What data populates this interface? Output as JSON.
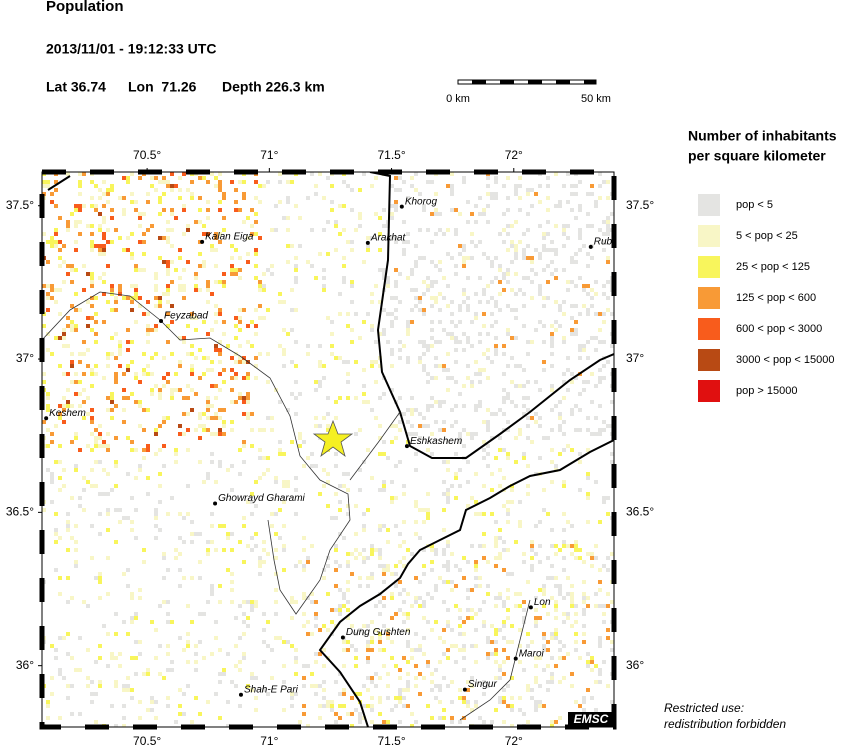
{
  "header": {
    "title": "Population",
    "datetime": "2013/11/01 - 19:12:33 UTC",
    "lat": "Lat 36.74",
    "lon": "Lon  71.26",
    "depth": "Depth 226.3 km"
  },
  "scale_bar": {
    "start": "0 km",
    "end": "50 km"
  },
  "map": {
    "xlim": [
      70.07,
      72.41
    ],
    "ylim": [
      35.8,
      37.61
    ],
    "xticks": [
      {
        "value": 70.5,
        "label": "70.5°"
      },
      {
        "value": 71,
        "label": "71°"
      },
      {
        "value": 71.5,
        "label": "71.5°"
      },
      {
        "value": 72,
        "label": "72°"
      }
    ],
    "yticks": [
      {
        "value": 37.5,
        "label": "37.5°"
      },
      {
        "value": 37,
        "label": "37°"
      },
      {
        "value": 36.5,
        "label": "36.5°"
      },
      {
        "value": 36,
        "label": "36°"
      }
    ],
    "cities": [
      {
        "name": "Khorog",
        "lon": 71.542,
        "lat": 37.497
      },
      {
        "name": "Arakhat",
        "lon": 71.403,
        "lat": 37.379
      },
      {
        "name": "Kalan Eiga",
        "lon": 70.725,
        "lat": 37.382
      },
      {
        "name": "Rub",
        "lon": 72.315,
        "lat": 37.366
      },
      {
        "name": "Feyzabad",
        "lon": 70.557,
        "lat": 37.124
      },
      {
        "name": "Keshem",
        "lon": 70.087,
        "lat": 36.807
      },
      {
        "name": "Eshkashem",
        "lon": 71.563,
        "lat": 36.716
      },
      {
        "name": "Ghowrayd Gharami",
        "lon": 70.778,
        "lat": 36.529
      },
      {
        "name": "Lon",
        "lon": 72.07,
        "lat": 36.19
      },
      {
        "name": "Dung Gushten",
        "lon": 71.301,
        "lat": 36.092
      },
      {
        "name": "Maroi",
        "lon": 72.008,
        "lat": 36.023
      },
      {
        "name": "Shah-E Pari",
        "lon": 70.884,
        "lat": 35.905
      },
      {
        "name": "Singur",
        "lon": 71.8,
        "lat": 35.922
      }
    ],
    "badge": "EMSC"
  },
  "legend": {
    "title_line1": "Number of inhabitants",
    "title_line2": "per square kilometer",
    "items": [
      {
        "label": "pop < 5",
        "color": "#e4e4e2"
      },
      {
        "label": "5 < pop < 25",
        "color": "#f8f6c6"
      },
      {
        "label": "25 < pop < 125",
        "color": "#f8f55c"
      },
      {
        "label": "125 < pop < 600",
        "color": "#f89a36"
      },
      {
        "label": "600 < pop < 3000",
        "color": "#f85c1c"
      },
      {
        "label": "3000 < pop < 15000",
        "color": "#b84a14"
      },
      {
        "label": "pop > 15000",
        "color": "#e01010"
      }
    ]
  },
  "footer": {
    "line1": "Restricted use:",
    "line2": "redistribution forbidden"
  }
}
